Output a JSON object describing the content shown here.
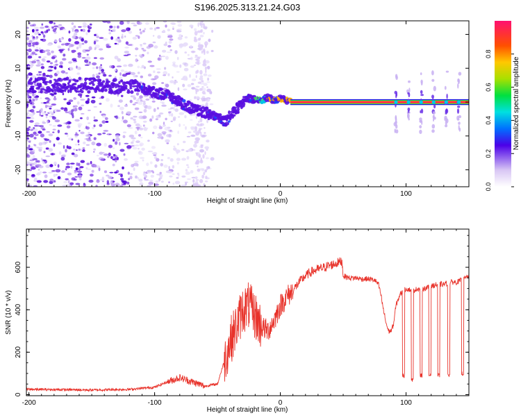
{
  "title": "S196.2025.313.21.24.G03",
  "chart_data": [
    {
      "type": "heatmap",
      "xlabel": "Height of straight line (km)",
      "ylabel": "Frequency (Hz)",
      "xlim": [
        -202,
        150
      ],
      "ylim": [
        -25,
        24
      ],
      "xticks": [
        -200,
        -100,
        0,
        100
      ],
      "xtick_labels": [
        "-200",
        "-100",
        "0",
        "100"
      ],
      "yticks": [
        20,
        10,
        0,
        -10,
        -20
      ],
      "ytick_labels": [
        "20",
        "10",
        "0",
        "-10",
        "-20"
      ],
      "colorbar": {
        "label": "Normalized spectral amplitude",
        "range": [
          0,
          1
        ],
        "ticks": [
          0,
          0.2,
          0.4,
          0.6,
          0.8
        ],
        "tick_labels": [
          "0.0",
          "0.2",
          "0.4",
          "0.6",
          "0.8"
        ]
      },
      "ridge": {
        "x": [
          -200,
          -150,
          -120,
          -110,
          -100,
          -90,
          -80,
          -70,
          -60,
          -50,
          -45,
          -40,
          -35,
          -30,
          -25,
          -20,
          -15,
          -10,
          -5,
          0,
          5,
          10,
          50,
          90,
          100,
          120,
          150
        ],
        "y": [
          5,
          5,
          4.5,
          4,
          3,
          2,
          0,
          -2,
          -3,
          -4,
          -6,
          -4,
          -2,
          0,
          1.5,
          1,
          0.5,
          1.5,
          0.5,
          1,
          0.5,
          0,
          0,
          0,
          0,
          0,
          0
        ]
      },
      "periodic_bursts_x": [
        92,
        102,
        112,
        122,
        132,
        142
      ]
    },
    {
      "type": "line",
      "xlabel": "Height of straight line (km)",
      "ylabel": "SNR (10 * v/v)",
      "xlim": [
        -202,
        150
      ],
      "ylim": [
        -5,
        780
      ],
      "xticks": [
        -200,
        -100,
        0,
        100
      ],
      "xtick_labels": [
        "-200",
        "-100",
        "0",
        "100"
      ],
      "yticks": [
        0,
        200,
        400,
        600
      ],
      "ytick_labels": [
        "0",
        "200",
        "400",
        "600"
      ],
      "series": [
        {
          "name": "SNR",
          "color": "#e8322a",
          "x": [
            -200,
            -150,
            -120,
            -100,
            -90,
            -80,
            -70,
            -60,
            -50,
            -45,
            -40,
            -35,
            -30,
            -25,
            -20,
            -15,
            -10,
            -5,
            0,
            5,
            10,
            15,
            20,
            25,
            30,
            35,
            40,
            45,
            49,
            50,
            55,
            60,
            65,
            70,
            75,
            78,
            80,
            82,
            84,
            86,
            88,
            90,
            92,
            95,
            100,
            105,
            110,
            115,
            120,
            125,
            130,
            135,
            140,
            145,
            150
          ],
          "values": [
            25,
            22,
            25,
            35,
            60,
            80,
            60,
            40,
            50,
            150,
            250,
            320,
            400,
            420,
            370,
            320,
            300,
            350,
            420,
            460,
            490,
            530,
            560,
            580,
            590,
            600,
            610,
            620,
            630,
            560,
            550,
            550,
            545,
            545,
            540,
            520,
            470,
            400,
            340,
            300,
            300,
            330,
            420,
            470,
            500,
            490,
            500,
            500,
            510,
            520,
            520,
            530,
            530,
            540,
            560
          ]
        },
        {
          "name": "dropouts",
          "x": [
            98,
            105,
            112,
            119,
            126,
            134,
            145
          ],
          "values": [
            90,
            70,
            90,
            90,
            90,
            90,
            100
          ]
        }
      ]
    }
  ]
}
